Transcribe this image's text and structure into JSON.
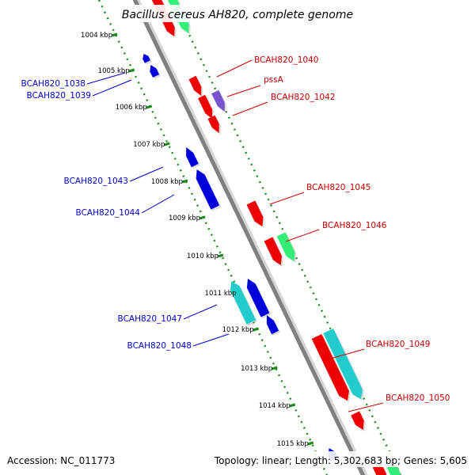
{
  "title": "Bacillus cereus AH820, complete genome",
  "accession_text": "Accession: NC_011773",
  "topology_text": "Topology: linear; Length: 5,302,683 bp; Genes: 5,605",
  "colors": {
    "label_red": "#cc0000",
    "label_blue": "#0000cc",
    "axis_gray": "#808080",
    "dotted_green": "#1a8a1a",
    "feature_red": "#ee0000",
    "feature_blue": "#0000dd",
    "feature_green": "#33ee77",
    "feature_cyan": "#22cccc",
    "feature_purple": "#7755cc"
  },
  "ticks": [
    {
      "label": "1004 kbp"
    },
    {
      "label": "1005 kbp"
    },
    {
      "label": "1006 kbp"
    },
    {
      "label": "1007 kbp"
    },
    {
      "label": "1008 kbp"
    },
    {
      "label": "1009 kbp"
    },
    {
      "label": "1010 kbp"
    },
    {
      "label": "1011 kbp"
    },
    {
      "label": "1012 kbp"
    },
    {
      "label": "1013 kbp"
    },
    {
      "label": "1014 kbp"
    },
    {
      "label": "1015 kbp"
    }
  ],
  "genes": [
    {
      "name": "BCAH820_1040",
      "strand": "forward",
      "color": "red"
    },
    {
      "name": "pssA",
      "strand": "forward",
      "color": "red"
    },
    {
      "name": "BCAH820_1042",
      "strand": "forward",
      "color": "red"
    },
    {
      "name": "BCAH820_1045",
      "strand": "forward",
      "color": "red"
    },
    {
      "name": "BCAH820_1046",
      "strand": "forward",
      "color": "red"
    },
    {
      "name": "BCAH820_1049",
      "strand": "forward",
      "color": "red"
    },
    {
      "name": "BCAH820_1050",
      "strand": "forward",
      "color": "red"
    },
    {
      "name": "BCAH820_1038",
      "strand": "reverse",
      "color": "blue"
    },
    {
      "name": "BCAH820_1039",
      "strand": "reverse",
      "color": "blue"
    },
    {
      "name": "BCAH820_1043",
      "strand": "reverse",
      "color": "blue"
    },
    {
      "name": "BCAH820_1044",
      "strand": "reverse",
      "color": "blue"
    },
    {
      "name": "BCAH820_1047",
      "strand": "reverse",
      "color": "blue"
    },
    {
      "name": "BCAH820_1048",
      "strand": "reverse",
      "color": "blue"
    }
  ]
}
